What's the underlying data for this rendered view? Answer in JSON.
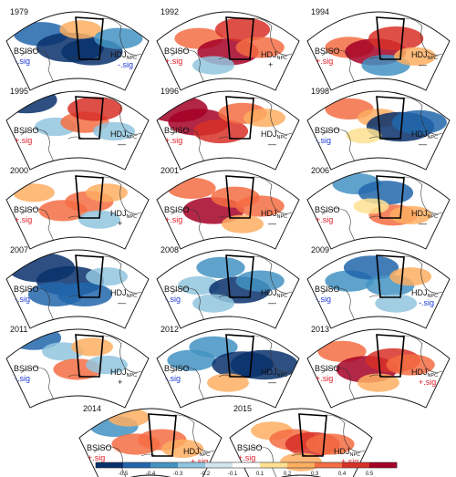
{
  "labels": {
    "bsiso": "BSISO",
    "hdj": "HDJ",
    "hdj_sub": "NPC"
  },
  "colors": {
    "pos_sig": "#e0202a",
    "neg_sig": "#1f3ad6"
  },
  "colorbar": {
    "ticks": [
      "-0.5",
      "-0.4",
      "-0.3",
      "-0.2",
      "-0.1",
      "0.1",
      "0.2",
      "0.3",
      "0.4",
      "0.5"
    ],
    "colors": [
      "#08306b",
      "#2166ac",
      "#4393c3",
      "#92c5de",
      "#d1e5f0",
      "#ffffff",
      "#fee090",
      "#fdae61",
      "#f46d43",
      "#d73027",
      "#a50026"
    ]
  },
  "chart_data": {
    "type": "heatmap",
    "vmin": -0.6,
    "vmax": 0.6,
    "panels": [
      {
        "year": "1979",
        "bsiso_sig": "-.sig",
        "bsiso_sign": "neg",
        "hdj_sig": "-.sig",
        "hdj_sign": "neg"
      },
      {
        "year": "1992",
        "bsiso_sig": "+.sig",
        "bsiso_sign": "pos",
        "hdj_sig": "+",
        "hdj_sign": "none"
      },
      {
        "year": "1994",
        "bsiso_sig": "+.sig",
        "bsiso_sign": "pos",
        "hdj_sig": "—",
        "hdj_sign": "none"
      },
      {
        "year": "1995",
        "bsiso_sig": "+.sig",
        "bsiso_sign": "pos",
        "hdj_sig": "—",
        "hdj_sign": "none"
      },
      {
        "year": "1996",
        "bsiso_sig": "+.sig",
        "bsiso_sign": "pos",
        "hdj_sig": "—",
        "hdj_sign": "none"
      },
      {
        "year": "1998",
        "bsiso_sig": "-.sig",
        "bsiso_sign": "neg",
        "hdj_sig": "—",
        "hdj_sign": "none"
      },
      {
        "year": "2000",
        "bsiso_sig": "+.sig",
        "bsiso_sign": "pos",
        "hdj_sig": "+",
        "hdj_sign": "none"
      },
      {
        "year": "2001",
        "bsiso_sig": "+.sig",
        "bsiso_sign": "pos",
        "hdj_sig": "—",
        "hdj_sign": "none"
      },
      {
        "year": "2006",
        "bsiso_sig": "+.sig",
        "bsiso_sign": "pos",
        "hdj_sig": "—",
        "hdj_sign": "none"
      },
      {
        "year": "2007",
        "bsiso_sig": "-.sig",
        "bsiso_sign": "neg",
        "hdj_sig": "—",
        "hdj_sign": "none"
      },
      {
        "year": "2008",
        "bsiso_sig": "-.sig",
        "bsiso_sign": "neg",
        "hdj_sig": "—",
        "hdj_sign": "none"
      },
      {
        "year": "2009",
        "bsiso_sig": "-.sig",
        "bsiso_sign": "neg",
        "hdj_sig": "-.sig",
        "hdj_sign": "neg"
      },
      {
        "year": "2011",
        "bsiso_sig": "-.sig",
        "bsiso_sign": "neg",
        "hdj_sig": "+",
        "hdj_sign": "none"
      },
      {
        "year": "2012",
        "bsiso_sig": "-.sig",
        "bsiso_sign": "neg",
        "hdj_sig": "—",
        "hdj_sign": "none"
      },
      {
        "year": "2013",
        "bsiso_sig": "+.sig",
        "bsiso_sign": "pos",
        "hdj_sig": "+.sig",
        "hdj_sign": "pos"
      },
      {
        "year": "2014",
        "bsiso_sig": "+.sig",
        "bsiso_sign": "pos",
        "hdj_sig": "+.sig",
        "hdj_sign": "pos"
      },
      {
        "year": "2015",
        "bsiso_sig": "+.sig",
        "bsiso_sign": "pos",
        "hdj_sig": "+.sig",
        "hdj_sign": "pos"
      }
    ],
    "anomalies": [
      [
        {
          "x": 0.25,
          "y": 0.35,
          "v": -0.4
        },
        {
          "x": 0.45,
          "y": 0.5,
          "v": -0.6
        },
        {
          "x": 0.6,
          "y": 0.55,
          "v": -0.5
        },
        {
          "x": 0.52,
          "y": 0.3,
          "v": 0.2
        },
        {
          "x": 0.78,
          "y": 0.4,
          "v": -0.3
        }
      ],
      [
        {
          "x": 0.3,
          "y": 0.4,
          "v": 0.3
        },
        {
          "x": 0.5,
          "y": 0.55,
          "v": 0.5
        },
        {
          "x": 0.6,
          "y": 0.3,
          "v": 0.4
        },
        {
          "x": 0.72,
          "y": 0.5,
          "v": 0.3
        },
        {
          "x": 0.4,
          "y": 0.7,
          "v": -0.2
        }
      ],
      [
        {
          "x": 0.3,
          "y": 0.5,
          "v": 0.3
        },
        {
          "x": 0.48,
          "y": 0.55,
          "v": 0.5
        },
        {
          "x": 0.62,
          "y": 0.4,
          "v": 0.4
        },
        {
          "x": 0.55,
          "y": 0.7,
          "v": -0.3
        },
        {
          "x": 0.75,
          "y": 0.6,
          "v": 0.2
        }
      ],
      [
        {
          "x": 0.15,
          "y": 0.2,
          "v": -0.5
        },
        {
          "x": 0.35,
          "y": 0.5,
          "v": -0.2
        },
        {
          "x": 0.55,
          "y": 0.45,
          "v": 0.3
        },
        {
          "x": 0.62,
          "y": 0.3,
          "v": 0.4
        },
        {
          "x": 0.75,
          "y": 0.55,
          "v": -0.2
        }
      ],
      [
        {
          "x": 0.15,
          "y": 0.3,
          "v": 0.5
        },
        {
          "x": 0.3,
          "y": 0.45,
          "v": 0.5
        },
        {
          "x": 0.45,
          "y": 0.55,
          "v": 0.4
        },
        {
          "x": 0.6,
          "y": 0.35,
          "v": 0.3
        },
        {
          "x": 0.75,
          "y": 0.4,
          "v": 0.2
        }
      ],
      [
        {
          "x": 0.3,
          "y": 0.3,
          "v": 0.3
        },
        {
          "x": 0.5,
          "y": 0.4,
          "v": 0.2
        },
        {
          "x": 0.65,
          "y": 0.5,
          "v": -0.6
        },
        {
          "x": 0.78,
          "y": 0.45,
          "v": -0.4
        },
        {
          "x": 0.4,
          "y": 0.6,
          "v": 0.1
        }
      ],
      [
        {
          "x": 0.2,
          "y": 0.35,
          "v": 0.2
        },
        {
          "x": 0.4,
          "y": 0.55,
          "v": 0.3
        },
        {
          "x": 0.58,
          "y": 0.45,
          "v": 0.3
        },
        {
          "x": 0.7,
          "y": 0.35,
          "v": 0.2
        },
        {
          "x": 0.65,
          "y": 0.65,
          "v": -0.2
        }
      ],
      [
        {
          "x": 0.25,
          "y": 0.3,
          "v": 0.3
        },
        {
          "x": 0.4,
          "y": 0.55,
          "v": 0.5
        },
        {
          "x": 0.55,
          "y": 0.4,
          "v": 0.3
        },
        {
          "x": 0.72,
          "y": 0.5,
          "v": 0.3
        },
        {
          "x": 0.6,
          "y": 0.7,
          "v": 0.2
        }
      ],
      [
        {
          "x": 0.35,
          "y": 0.25,
          "v": -0.3
        },
        {
          "x": 0.55,
          "y": 0.35,
          "v": -0.4
        },
        {
          "x": 0.6,
          "y": 0.6,
          "v": 0.3
        },
        {
          "x": 0.72,
          "y": 0.6,
          "v": 0.2
        },
        {
          "x": 0.45,
          "y": 0.5,
          "v": 0.1
        }
      ],
      [
        {
          "x": 0.25,
          "y": 0.3,
          "v": -0.6
        },
        {
          "x": 0.45,
          "y": 0.45,
          "v": -0.6
        },
        {
          "x": 0.55,
          "y": 0.6,
          "v": -0.4
        },
        {
          "x": 0.7,
          "y": 0.4,
          "v": -0.2
        },
        {
          "x": 0.35,
          "y": 0.6,
          "v": -0.4
        }
      ],
      [
        {
          "x": 0.3,
          "y": 0.5,
          "v": -0.2
        },
        {
          "x": 0.45,
          "y": 0.3,
          "v": -0.3
        },
        {
          "x": 0.58,
          "y": 0.55,
          "v": -0.5
        },
        {
          "x": 0.72,
          "y": 0.45,
          "v": -0.3
        },
        {
          "x": 0.4,
          "y": 0.7,
          "v": -0.2
        }
      ],
      [
        {
          "x": 0.3,
          "y": 0.45,
          "v": -0.3
        },
        {
          "x": 0.45,
          "y": 0.3,
          "v": -0.4
        },
        {
          "x": 0.58,
          "y": 0.5,
          "v": -0.3
        },
        {
          "x": 0.72,
          "y": 0.4,
          "v": 0.2
        },
        {
          "x": 0.62,
          "y": 0.7,
          "v": -0.2
        }
      ],
      [
        {
          "x": 0.2,
          "y": 0.2,
          "v": -0.4
        },
        {
          "x": 0.4,
          "y": 0.35,
          "v": -0.2
        },
        {
          "x": 0.5,
          "y": 0.55,
          "v": 0.3
        },
        {
          "x": 0.7,
          "y": 0.5,
          "v": -0.2
        },
        {
          "x": 0.6,
          "y": 0.3,
          "v": 0.2
        }
      ],
      [
        {
          "x": 0.25,
          "y": 0.45,
          "v": -0.3
        },
        {
          "x": 0.4,
          "y": 0.3,
          "v": -0.3
        },
        {
          "x": 0.6,
          "y": 0.5,
          "v": -0.5
        },
        {
          "x": 0.75,
          "y": 0.5,
          "v": -0.6
        },
        {
          "x": 0.5,
          "y": 0.7,
          "v": 0.2
        }
      ],
      [
        {
          "x": 0.25,
          "y": 0.35,
          "v": 0.3
        },
        {
          "x": 0.42,
          "y": 0.55,
          "v": 0.5
        },
        {
          "x": 0.6,
          "y": 0.45,
          "v": 0.4
        },
        {
          "x": 0.72,
          "y": 0.5,
          "v": 0.3
        },
        {
          "x": 0.5,
          "y": 0.7,
          "v": 0.2
        }
      ],
      [
        {
          "x": 0.25,
          "y": 0.3,
          "v": -0.3
        },
        {
          "x": 0.4,
          "y": 0.5,
          "v": 0.3
        },
        {
          "x": 0.58,
          "y": 0.45,
          "v": 0.3
        },
        {
          "x": 0.72,
          "y": 0.55,
          "v": 0.2
        },
        {
          "x": 0.35,
          "y": 0.2,
          "v": 0.2
        }
      ],
      [
        {
          "x": 0.3,
          "y": 0.35,
          "v": 0.2
        },
        {
          "x": 0.45,
          "y": 0.45,
          "v": 0.3
        },
        {
          "x": 0.58,
          "y": 0.5,
          "v": 0.4
        },
        {
          "x": 0.7,
          "y": 0.5,
          "v": 0.3
        },
        {
          "x": 0.5,
          "y": 0.7,
          "v": 0.2
        }
      ]
    ]
  }
}
